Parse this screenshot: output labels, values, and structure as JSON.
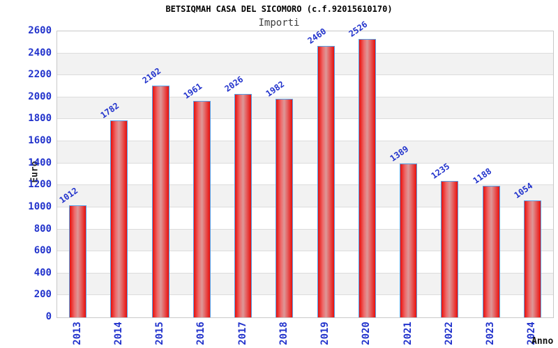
{
  "chart_data": {
    "type": "bar",
    "title": "BETSIQMAH CASA DEL SICOMORO (c.f.92015610170)",
    "subtitle": "Importi",
    "xlabel": "Anno",
    "ylabel": "Euro",
    "categories": [
      "2013",
      "2014",
      "2015",
      "2016",
      "2017",
      "2018",
      "2019",
      "2020",
      "2021",
      "2022",
      "2023",
      "2024"
    ],
    "values": [
      1012,
      1782,
      2102,
      1961,
      2026,
      1982,
      2460,
      2526,
      1389,
      1235,
      1188,
      1054
    ],
    "ylim": [
      0,
      2600
    ],
    "ytick_step": 200,
    "grid": "horizontal",
    "legend": "none",
    "value_labels_rotation_deg": -35,
    "xtick_rotation_deg": -90,
    "colors": {
      "tick_label": "#2233cc",
      "value_label": "#2233cc",
      "bar_edge": "#e8100c",
      "bar_center": "#dd9898",
      "bar_border": "#55a0e8",
      "band_alt": "#f2f2f2",
      "gridline": "#dcdcdc",
      "plot_border": "#c8c8c8",
      "title_color": "#000000",
      "subtitle_color": "#3c3c3c"
    }
  }
}
